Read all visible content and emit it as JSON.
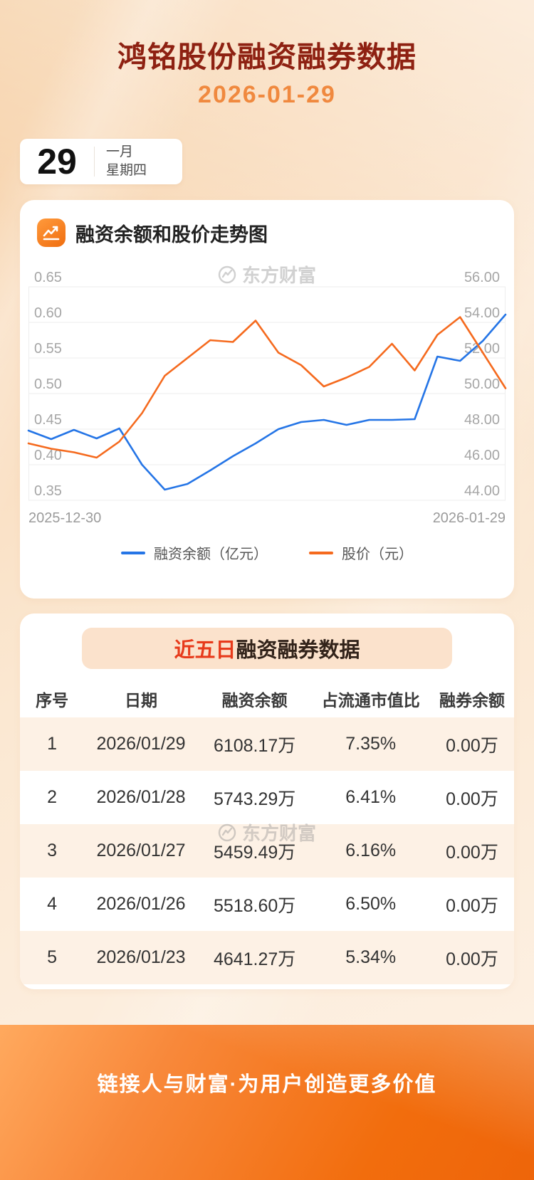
{
  "header": {
    "title": "鸿铭股份融资融券数据",
    "date": "2026-01-29",
    "calendar": {
      "day": "29",
      "month": "一月",
      "weekday": "星期四"
    }
  },
  "chart_section": {
    "title": "融资余额和股价走势图",
    "watermark": "东方财富"
  },
  "chart_data": {
    "type": "line",
    "title": "融资余额和股价走势图",
    "grid": true,
    "legend_position": "bottom",
    "x_labels": [
      "2025-12-30",
      "2026-01-29"
    ],
    "left_axis": {
      "min": 0.35,
      "max": 0.65,
      "ticks": [
        "0.65",
        "0.60",
        "0.55",
        "0.50",
        "0.45",
        "0.40",
        "0.35"
      ]
    },
    "right_axis": {
      "min": 44,
      "max": 56,
      "ticks": [
        "56.00",
        "54.00",
        "52.00",
        "50.00",
        "48.00",
        "46.00",
        "44.00"
      ]
    },
    "series": [
      {
        "name": "融资余额（亿元）",
        "axis": "left",
        "color": "#2575e6",
        "values": [
          0.448,
          0.436,
          0.449,
          0.437,
          0.451,
          0.4,
          0.365,
          0.373,
          0.392,
          0.412,
          0.43,
          0.45,
          0.46,
          0.463,
          0.456,
          0.463,
          0.463,
          0.464,
          0.552,
          0.546,
          0.574,
          0.611
        ]
      },
      {
        "name": "股价（元）",
        "axis": "right",
        "color": "#f56a1e",
        "values": [
          47.2,
          46.9,
          46.7,
          46.4,
          47.3,
          48.9,
          51.0,
          52.0,
          53.0,
          52.9,
          54.1,
          52.3,
          51.6,
          50.4,
          50.9,
          51.5,
          52.8,
          51.3,
          53.3,
          54.3,
          52.3,
          50.3
        ]
      }
    ]
  },
  "table_section": {
    "title_highlight": "近五日",
    "title_rest": "融资融券数据",
    "watermark": "东方财富",
    "columns": [
      "序号",
      "日期",
      "融资余额",
      "占流通市值比",
      "融券余额"
    ],
    "rows": [
      [
        "1",
        "2026/01/29",
        "6108.17万",
        "7.35%",
        "0.00万"
      ],
      [
        "2",
        "2026/01/28",
        "5743.29万",
        "6.41%",
        "0.00万"
      ],
      [
        "3",
        "2026/01/27",
        "5459.49万",
        "6.16%",
        "0.00万"
      ],
      [
        "4",
        "2026/01/26",
        "5518.60万",
        "6.50%",
        "0.00万"
      ],
      [
        "5",
        "2026/01/23",
        "4641.27万",
        "5.34%",
        "0.00万"
      ]
    ]
  },
  "footer": {
    "slogan": "链接人与财富·为用户创造更多价值"
  },
  "colors": {
    "title": "#8e2112",
    "date": "#f0893f",
    "blue_series": "#2575e6",
    "orange_series": "#f56a1e",
    "highlight_red": "#e73a1b",
    "footer_orange": "#f26d0d",
    "stripe_peach": "#fdf1e5"
  }
}
